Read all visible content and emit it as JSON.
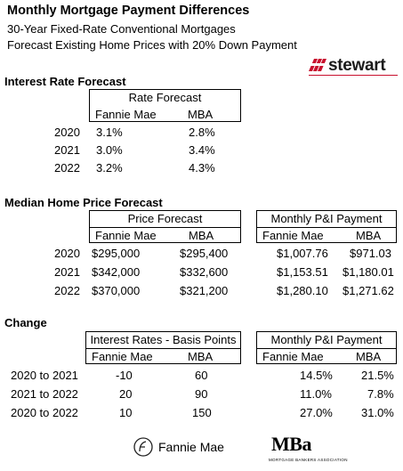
{
  "header": {
    "title": "Monthly Mortgage Payment Differences",
    "subtitle1": "30-Year Fixed-Rate Conventional Mortgages",
    "subtitle2": "Forecast Existing Home Prices with 20% Down Payment"
  },
  "brand": {
    "stewart": "stewart",
    "stewart_color": "#c8102e"
  },
  "interest": {
    "section_title": "Interest Rate Forecast",
    "box_title": "Rate Forecast",
    "col1": "Fannie Mae",
    "col2": "MBA",
    "rows": [
      {
        "year": "2020",
        "fm": "3.1%",
        "mba": "2.8%"
      },
      {
        "year": "2021",
        "fm": "3.0%",
        "mba": "3.4%"
      },
      {
        "year": "2022",
        "fm": "3.2%",
        "mba": "4.3%"
      }
    ]
  },
  "price": {
    "section_title": "Median Home Price Forecast",
    "box_title": "Price Forecast",
    "box2_title": "Monthly P&I Payment",
    "col1": "Fannie Mae",
    "col2": "MBA",
    "col3": "Fannie Mae",
    "col4": "MBA",
    "rows": [
      {
        "year": "2020",
        "fm": "$295,000",
        "mba": "$295,400",
        "pfm": "$1,007.76",
        "pmba": "$971.03"
      },
      {
        "year": "2021",
        "fm": "$342,000",
        "mba": "$332,600",
        "pfm": "$1,153.51",
        "pmba": "$1,180.01"
      },
      {
        "year": "2022",
        "fm": "$370,000",
        "mba": "$321,200",
        "pfm": "$1,280.10",
        "pmba": "$1,271.62"
      }
    ]
  },
  "change": {
    "section_title": "Change",
    "box_title": "Interest Rates - Basis Points",
    "box2_title": "Monthly P&I Payment",
    "col1": "Fannie Mae",
    "col2": "MBA",
    "col3": "Fannie Mae",
    "col4": "MBA",
    "rows": [
      {
        "period": "2020 to 2021",
        "fm": "-10",
        "mba": "60",
        "pfm": "14.5%",
        "pmba": "21.5%"
      },
      {
        "period": "2021 to 2022",
        "fm": "20",
        "mba": "90",
        "pfm": "11.0%",
        "pmba": "7.8%"
      },
      {
        "period": "2020 to 2022",
        "fm": "10",
        "mba": "150",
        "pfm": "27.0%",
        "pmba": "31.0%"
      }
    ]
  },
  "footer": {
    "fanniemae": "Fannie Mae",
    "mba": "MBa",
    "mba_sub": "MORTGAGE BANKERS ASSOCIATION"
  }
}
